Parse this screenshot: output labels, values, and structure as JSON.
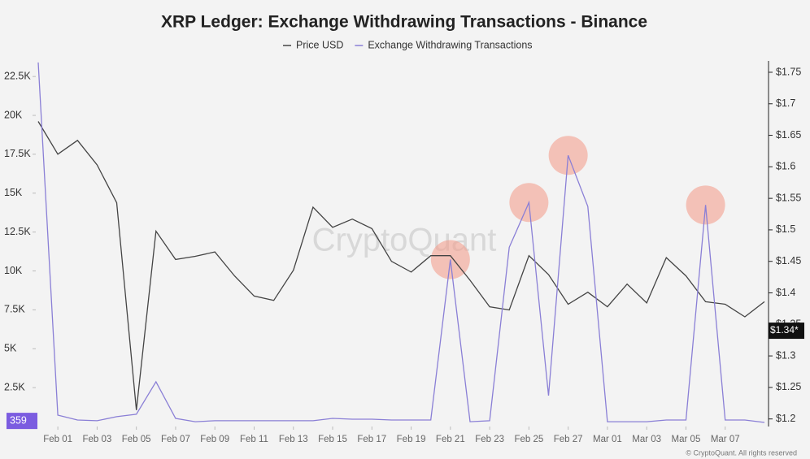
{
  "chart_data": {
    "type": "line",
    "title": "XRP Ledger: Exchange Withdrawing Transactions - Binance",
    "watermark": "CryptoQuant",
    "copyright": "© CryptoQuant. All rights reserved",
    "categories": [
      null,
      "Feb 01",
      null,
      "Feb 03",
      null,
      "Feb 05",
      null,
      "Feb 07",
      null,
      "Feb 09",
      null,
      "Feb 11",
      null,
      "Feb 13",
      null,
      "Feb 15",
      null,
      "Feb 17",
      null,
      "Feb 19",
      null,
      "Feb 21",
      null,
      "Feb 23",
      null,
      "Feb 25",
      null,
      "Feb 27",
      null,
      "Mar 01",
      null,
      "Mar 03",
      null,
      "Mar 05",
      null,
      "Mar 07",
      null,
      null
    ],
    "series": [
      {
        "name": "Price USD",
        "color": "#444444",
        "axis": "y2",
        "values": [
          1.672,
          1.62,
          1.642,
          1.603,
          1.543,
          1.214,
          1.498,
          1.453,
          1.458,
          1.465,
          1.427,
          1.395,
          1.388,
          1.436,
          1.536,
          1.504,
          1.517,
          1.502,
          1.45,
          1.433,
          1.459,
          1.459,
          1.42,
          1.378,
          1.373,
          1.459,
          1.429,
          1.382,
          1.401,
          1.378,
          1.414,
          1.384,
          1.456,
          1.427,
          1.386,
          1.382,
          1.362,
          1.386
        ]
      },
      {
        "name": "Exchange Withdrawing Transactions",
        "color": "#8a7fd6",
        "values": [
          23400,
          730,
          420,
          370,
          630,
          790,
          2880,
          520,
          310,
          370,
          370,
          370,
          370,
          370,
          370,
          520,
          470,
          470,
          420,
          420,
          420,
          10730,
          310,
          370,
          11520,
          14400,
          1990,
          17430,
          14140,
          310,
          310,
          310,
          420,
          420,
          14240,
          420,
          420,
          260
        ],
        "highlight_indices": [
          21,
          25,
          27,
          34
        ]
      }
    ],
    "ylim": [
      0,
      23500
    ],
    "yticks": [
      {
        "value": 2500,
        "label": "2.5K"
      },
      {
        "value": 5000,
        "label": "5K"
      },
      {
        "value": 7500,
        "label": "7.5K"
      },
      {
        "value": 10000,
        "label": "10K"
      },
      {
        "value": 12500,
        "label": "12.5K"
      },
      {
        "value": 15000,
        "label": "15K"
      },
      {
        "value": 17500,
        "label": "17.5K"
      },
      {
        "value": 20000,
        "label": "20K"
      },
      {
        "value": 22500,
        "label": "22.5K"
      }
    ],
    "y2lim": [
      1.188,
      1.768
    ],
    "y2ticks": [
      {
        "value": 1.2,
        "label": "$1.2"
      },
      {
        "value": 1.25,
        "label": "$1.25"
      },
      {
        "value": 1.3,
        "label": "$1.3"
      },
      {
        "value": 1.35,
        "label": "$1.35"
      },
      {
        "value": 1.4,
        "label": "$1.4"
      },
      {
        "value": 1.45,
        "label": "$1.45"
      },
      {
        "value": 1.5,
        "label": "$1.5"
      },
      {
        "value": 1.55,
        "label": "$1.55"
      },
      {
        "value": 1.6,
        "label": "$1.6"
      },
      {
        "value": 1.65,
        "label": "$1.65"
      },
      {
        "value": 1.7,
        "label": "$1.7"
      },
      {
        "value": 1.75,
        "label": "$1.75"
      }
    ],
    "y_marker": {
      "value": 359,
      "label": "359"
    },
    "y2_marker": {
      "value": 1.34,
      "label": "$1.34*"
    },
    "legend": "top"
  }
}
